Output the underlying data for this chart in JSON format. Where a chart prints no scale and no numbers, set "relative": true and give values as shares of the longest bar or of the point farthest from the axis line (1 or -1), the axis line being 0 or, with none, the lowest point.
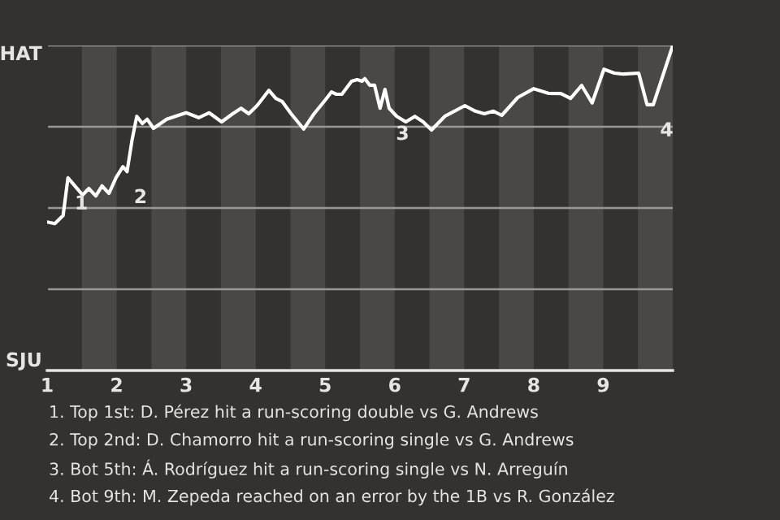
{
  "chart_data": {
    "type": "line",
    "relative": true,
    "x": [
      1.0,
      1.11,
      1.23,
      1.3,
      1.4,
      1.51,
      1.6,
      1.7,
      1.79,
      1.89,
      1.99,
      2.09,
      2.15,
      2.22,
      2.29,
      2.37,
      2.44,
      2.53,
      2.72,
      3.0,
      3.18,
      3.33,
      3.51,
      3.67,
      3.79,
      3.9,
      4.02,
      4.19,
      4.29,
      4.38,
      4.51,
      4.69,
      4.84,
      5.0,
      5.09,
      5.16,
      5.24,
      5.38,
      5.46,
      5.53,
      5.57,
      5.64,
      5.71,
      5.79,
      5.86,
      5.92,
      6.03,
      6.16,
      6.29,
      6.41,
      6.53,
      6.72,
      7.01,
      7.16,
      7.29,
      7.42,
      7.54,
      7.77,
      8.0,
      8.21,
      8.39,
      8.53,
      8.69,
      8.84,
      9.01,
      9.16,
      9.29,
      9.51,
      9.63,
      9.72,
      10.0
    ],
    "series": [
      {
        "color": "#ffffff",
        "values": [
          0.457,
          0.452,
          0.477,
          0.593,
          0.568,
          0.54,
          0.56,
          0.537,
          0.568,
          0.545,
          0.593,
          0.627,
          0.612,
          0.707,
          0.782,
          0.76,
          0.773,
          0.745,
          0.773,
          0.793,
          0.778,
          0.793,
          0.765,
          0.79,
          0.807,
          0.79,
          0.815,
          0.862,
          0.837,
          0.828,
          0.79,
          0.743,
          0.79,
          0.832,
          0.857,
          0.85,
          0.85,
          0.89,
          0.895,
          0.89,
          0.898,
          0.878,
          0.878,
          0.807,
          0.865,
          0.807,
          0.782,
          0.765,
          0.782,
          0.765,
          0.74,
          0.782,
          0.815,
          0.798,
          0.79,
          0.798,
          0.785,
          0.84,
          0.867,
          0.853,
          0.852,
          0.837,
          0.877,
          0.823,
          0.927,
          0.915,
          0.912,
          0.915,
          0.818,
          0.818,
          1.0
        ]
      }
    ],
    "xlim": [
      1,
      10
    ],
    "xticks": [
      1,
      2,
      3,
      4,
      5,
      6,
      7,
      8,
      9
    ],
    "marker": "none",
    "line_style": "solid",
    "ref_lines": [
      {
        "axis": "y",
        "value": 0.25,
        "color": "#9a9895"
      },
      {
        "axis": "y",
        "value": 0.5,
        "color": "#9a9895"
      },
      {
        "axis": "y",
        "value": 0.75,
        "color": "#9a9895"
      },
      {
        "axis": "y",
        "value": 1.0,
        "color": "#9a9895"
      }
    ],
    "bands": [
      {
        "axis": "x",
        "from": 1.5,
        "to": 2,
        "color": "#4a4846"
      },
      {
        "axis": "x",
        "from": 2.5,
        "to": 3,
        "color": "#4a4846"
      },
      {
        "axis": "x",
        "from": 3.5,
        "to": 4,
        "color": "#4a4846"
      },
      {
        "axis": "x",
        "from": 4.5,
        "to": 5,
        "color": "#4a4846"
      },
      {
        "axis": "x",
        "from": 5.5,
        "to": 6,
        "color": "#4a4846"
      },
      {
        "axis": "x",
        "from": 6.5,
        "to": 7,
        "color": "#4a4846"
      },
      {
        "axis": "x",
        "from": 7.5,
        "to": 8,
        "color": "#4a4846"
      },
      {
        "axis": "x",
        "from": 8.5,
        "to": 9,
        "color": "#4a4846"
      },
      {
        "axis": "x",
        "from": 9.5,
        "to": 10,
        "color": "#4a4846"
      }
    ],
    "annotations": [
      "HAT",
      "SJU",
      {
        "text": "1",
        "x": 1.3,
        "y": 0.593
      },
      {
        "text": "2",
        "x": 2.15,
        "y": 0.612
      },
      {
        "text": "3",
        "x": 5.92,
        "y": 0.807
      },
      {
        "text": "4",
        "x": 9.72,
        "y": 0.818
      },
      "1. Top 1st: D. Pérez hit a run-scoring double vs G. Andrews",
      "2. Top 2nd: D. Chamorro hit a run-scoring single vs G. Andrews",
      "3. Bot 5th: Á. Rodríguez hit a run-scoring single vs N. Arreguín",
      "4. Bot 9th: M. Zepeda reached on an error by the 1B vs R. González"
    ]
  }
}
